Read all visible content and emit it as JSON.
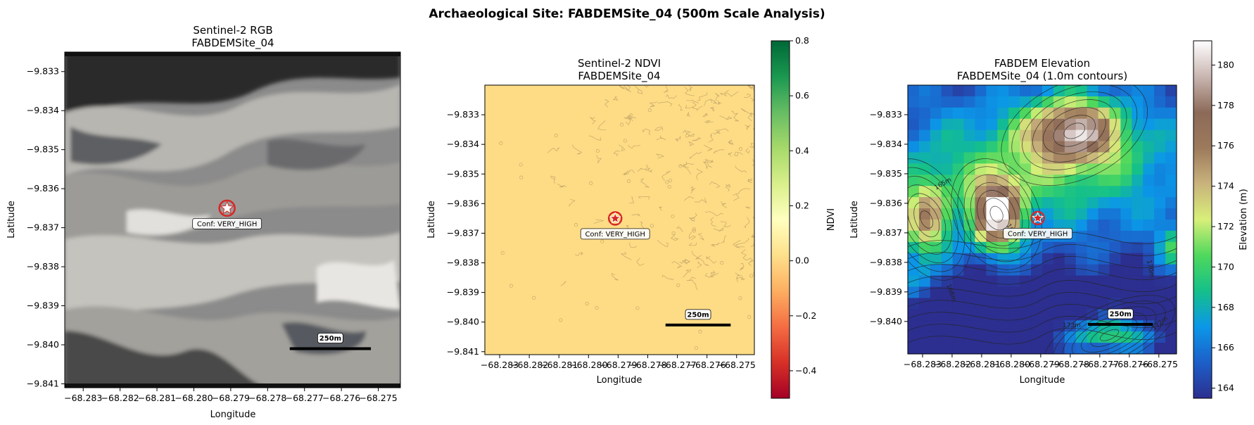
{
  "figure": {
    "suptitle": "Archaeological Site: FABDEMSite_04 (500m Scale Analysis)"
  },
  "chart_data": [
    {
      "type": "heatmap",
      "name": "rgb",
      "title": "Sentinel-2 RGB",
      "subtitle": "FABDEMSite_04",
      "xlabel": "Longitude",
      "ylabel": "Latitude",
      "xticks": [
        "−68.283",
        "−68.282",
        "−68.281",
        "−68.280",
        "−68.279",
        "−68.278",
        "−68.277",
        "−68.276",
        "−68.275"
      ],
      "yticks": [
        "−9.833",
        "−9.834",
        "−9.835",
        "−9.836",
        "−9.837",
        "−9.838",
        "−9.839",
        "−9.840",
        "−9.841"
      ],
      "site": {
        "lon": -68.2791,
        "lat": -9.8365,
        "label": "Conf: VERY_HIGH"
      },
      "scalebar": {
        "label": "250m",
        "lon_start": -68.2774,
        "lon_end": -68.2752,
        "lat": -9.8401
      }
    },
    {
      "type": "heatmap",
      "name": "ndvi",
      "title": "Sentinel-2 NDVI",
      "subtitle": "FABDEMSite_04",
      "xlabel": "Longitude",
      "ylabel": "Latitude",
      "xticks": [
        "−68.283",
        "−68.282",
        "−68.281",
        "−68.280",
        "−68.279",
        "−68.278",
        "−68.277",
        "−68.276",
        "−68.275"
      ],
      "yticks": [
        "−9.833",
        "−9.834",
        "−9.835",
        "−9.836",
        "−9.837",
        "−9.838",
        "−9.839",
        "−9.840",
        "−9.841"
      ],
      "colorbar": {
        "label": "NDVI",
        "range": [
          -0.5,
          0.8
        ],
        "ticks": [
          "0.8",
          "0.6",
          "0.4",
          "0.2",
          "0.0",
          "−0.2",
          "−0.4"
        ],
        "colormap": [
          "#a50026",
          "#d73027",
          "#f46d43",
          "#fdae61",
          "#fee08b",
          "#ffffbf",
          "#d9ef8b",
          "#a6d96a",
          "#66bd63",
          "#1a9850",
          "#006837"
        ]
      },
      "field_color": "#fddc85",
      "site": {
        "lon": -68.2791,
        "lat": -9.8365,
        "label": "Conf: VERY_HIGH"
      },
      "scalebar": {
        "label": "250m",
        "lon_start": -68.2774,
        "lon_end": -68.2752,
        "lat": -9.8401
      }
    },
    {
      "type": "heatmap",
      "name": "elevation",
      "title": "FABDEM Elevation",
      "subtitle": "FABDEMSite_04 (1.0m contours)",
      "xlabel": "Longitude",
      "ylabel": "Latitude",
      "xticks": [
        "−68.283",
        "−68.282",
        "−68.281",
        "−68.280",
        "−68.279",
        "−68.278",
        "−68.277",
        "−68.276",
        "−68.275"
      ],
      "yticks": [
        "−9.833",
        "−9.834",
        "−9.835",
        "−9.836",
        "−9.837",
        "−9.838",
        "−9.839",
        "−9.840"
      ],
      "colorbar": {
        "label": "Elevation (m)",
        "range": [
          163.5,
          181.2
        ],
        "ticks": [
          "180",
          "178",
          "176",
          "174",
          "172",
          "170",
          "168",
          "166",
          "164"
        ],
        "colormap": [
          "#2c2f8f",
          "#1d5fc8",
          "#0b97e8",
          "#14c08a",
          "#4fd85c",
          "#d8ef79",
          "#c9b37c",
          "#9d7a5c",
          "#8c6a58",
          "#c9b6b1",
          "#ffffff"
        ]
      },
      "contour_labels": [
        "165m",
        "167m",
        "170m",
        "172m",
        "173m",
        "166m"
      ],
      "site": {
        "lon": -68.2791,
        "lat": -9.8365,
        "label": "Conf: VERY_HIGH"
      },
      "scalebar": {
        "label": "250m",
        "lon_start": -68.2774,
        "lon_end": -68.2752,
        "lat": -9.8401
      }
    }
  ]
}
